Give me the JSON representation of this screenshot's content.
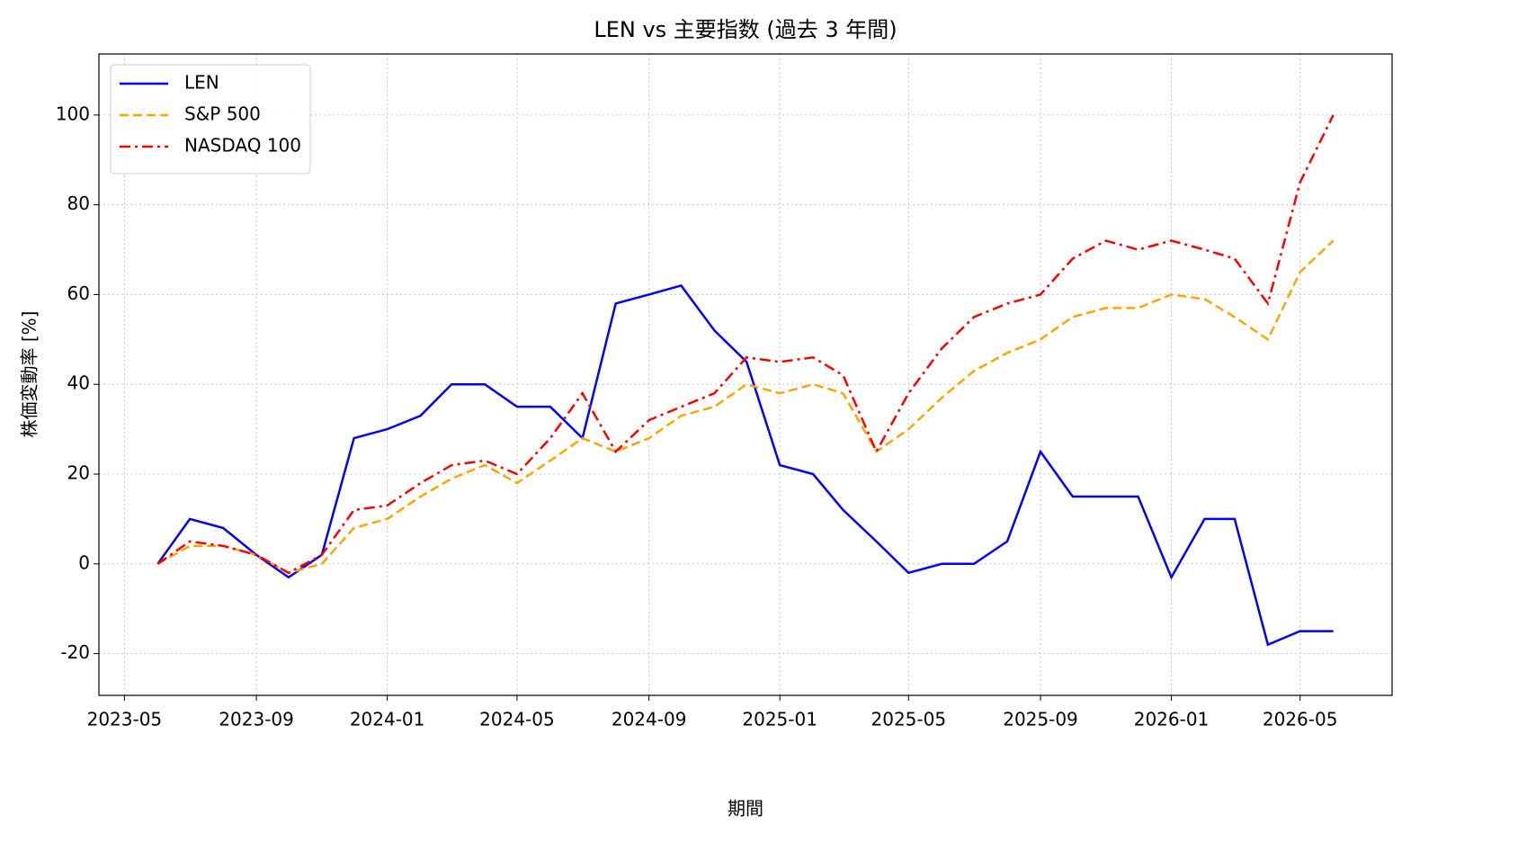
{
  "chart_data": {
    "type": "line",
    "title": "LEN vs 主要指数 (過去 3 年間)",
    "x_label": "期間",
    "y_label": "株価変動率 [%]",
    "x": [
      "2023-06",
      "2023-07",
      "2023-08",
      "2023-09",
      "2023-10",
      "2023-11",
      "2023-12",
      "2024-01",
      "2024-02",
      "2024-03",
      "2024-04",
      "2024-05",
      "2024-06",
      "2024-07",
      "2024-08",
      "2024-09",
      "2024-10",
      "2024-11",
      "2024-12",
      "2025-01",
      "2025-02",
      "2025-03",
      "2025-04",
      "2025-05",
      "2025-06",
      "2025-07",
      "2025-08",
      "2025-09",
      "2025-10",
      "2025-11",
      "2025-12",
      "2026-01",
      "2026-02",
      "2026-03",
      "2026-04",
      "2026-05",
      "2026-06"
    ],
    "series": [
      {
        "name": "LEN",
        "color": "#0000ff",
        "linestyle": "solid",
        "values": [
          0,
          10,
          8,
          2,
          -3,
          2,
          28,
          30,
          33,
          40,
          40,
          35,
          35,
          28,
          58,
          60,
          62,
          52,
          45,
          22,
          20,
          12,
          5,
          -2,
          0,
          0,
          5,
          25,
          15,
          15,
          15,
          -3,
          10,
          10,
          -18,
          -15,
          -15
        ]
      },
      {
        "name": "S&P 500",
        "color": "#ffa500",
        "linestyle": "dashed",
        "values": [
          0,
          4,
          4,
          2,
          -2,
          0,
          8,
          10,
          15,
          19,
          22,
          18,
          23,
          28,
          25,
          28,
          33,
          35,
          40,
          38,
          40,
          38,
          25,
          30,
          37,
          43,
          47,
          50,
          55,
          57,
          57,
          60,
          59,
          55,
          50,
          65,
          72
        ]
      },
      {
        "name": "NASDAQ 100",
        "color": "#ff0000",
        "linestyle": "dashdot",
        "values": [
          0,
          5,
          4,
          2,
          -2,
          2,
          12,
          13,
          18,
          22,
          23,
          20,
          28,
          38,
          25,
          32,
          35,
          38,
          46,
          45,
          46,
          42,
          25,
          38,
          48,
          55,
          58,
          60,
          68,
          72,
          70,
          72,
          70,
          68,
          58,
          85,
          100
        ]
      }
    ],
    "xticks": [
      "2023-05",
      "2023-09",
      "2024-01",
      "2024-05",
      "2024-09",
      "2025-01",
      "2025-05",
      "2025-09",
      "2026-01",
      "2026-05"
    ],
    "ylim": [
      -29.3,
      113.6
    ],
    "yticks": [
      -20,
      0,
      20,
      40,
      60,
      80,
      100
    ],
    "grid": true,
    "legend": "upper-left"
  }
}
